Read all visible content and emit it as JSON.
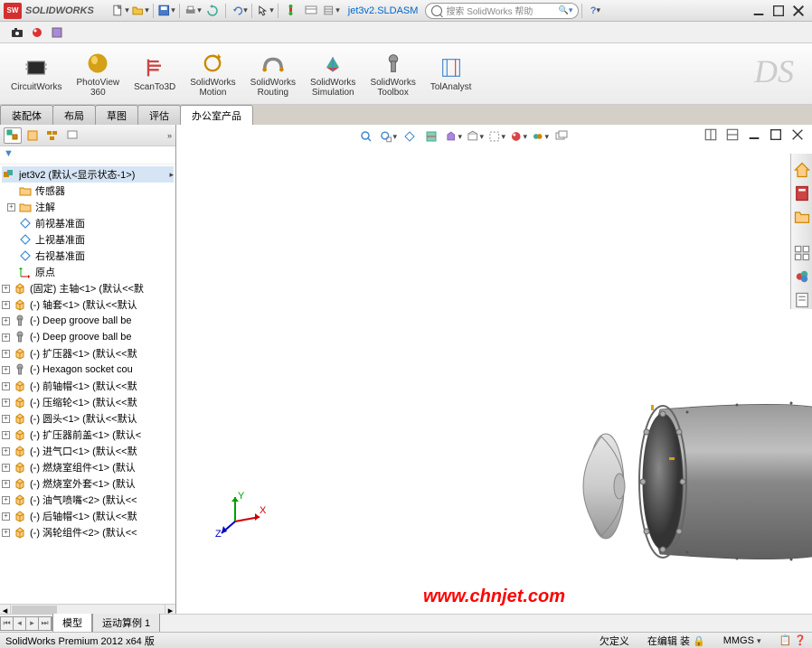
{
  "app": {
    "brand": "SOLIDWORKS",
    "logo_short": "SW",
    "filename": "jet3v2.SLDASM",
    "search_placeholder": "搜索 SolidWorks 帮助",
    "ds_logo": "DS"
  },
  "colors": {
    "accent_red": "#d32f2f",
    "link_blue": "#0066cc",
    "watermark_red": "#ff0000"
  },
  "command_mgr": [
    {
      "label": "CircuitWorks",
      "icon": "chip"
    },
    {
      "label": "PhotoView\n360",
      "icon": "sphere-gold"
    },
    {
      "label": "ScanTo3D",
      "icon": "flag"
    },
    {
      "label": "SolidWorks\nMotion",
      "icon": "motion"
    },
    {
      "label": "SolidWorks\nRouting",
      "icon": "routing"
    },
    {
      "label": "SolidWorks\nSimulation",
      "icon": "cube-color"
    },
    {
      "label": "SolidWorks\nToolbox",
      "icon": "bolt"
    },
    {
      "label": "TolAnalyst",
      "icon": "tol"
    }
  ],
  "main_tabs": [
    {
      "label": "装配体",
      "active": false
    },
    {
      "label": "布局",
      "active": false
    },
    {
      "label": "草图",
      "active": false
    },
    {
      "label": "评估",
      "active": false
    },
    {
      "label": "办公室产品",
      "active": true
    }
  ],
  "filter_label": "▼ ·",
  "tree": {
    "root": "jet3v2  (默认<显示状态-1>)",
    "top_items": [
      {
        "icon": "folder-sensor",
        "label": "传感器"
      },
      {
        "icon": "folder-anno",
        "label": "注解",
        "expand": "+"
      },
      {
        "icon": "plane",
        "label": "前视基准面"
      },
      {
        "icon": "plane",
        "label": "上视基准面"
      },
      {
        "icon": "plane",
        "label": "右视基准面"
      },
      {
        "icon": "origin",
        "label": "原点"
      }
    ],
    "parts": [
      "(固定) 主轴<1> (默认<<默",
      "(-) 轴套<1> (默认<<默认",
      "(-) Deep groove ball be",
      "(-) Deep groove ball be",
      "(-) 扩压器<1> (默认<<默",
      "(-) Hexagon socket cou",
      "(-) 前轴帽<1> (默认<<默",
      "(-) 压缩轮<1> (默认<<默",
      "(-) 圆头<1> (默认<<默认",
      "(-) 扩压器前盖<1> (默认<",
      "(-) 进气口<1> (默认<<默",
      "(-) 燃烧室组件<1> (默认",
      "(-) 燃烧室外套<1> (默认",
      "(-) 油气喷嘴<2> (默认<<",
      "(-) 后轴帽<1> (默认<<默",
      "(-) 涡轮组件<2> (默认<<"
    ]
  },
  "bottom_tabs": [
    "模型",
    "运动算例 1"
  ],
  "statusbar": {
    "left": "SolidWorks Premium 2012 x64 版",
    "mid": "欠定义",
    "right_units": "MMGS"
  },
  "watermark": "www.chnjet.com",
  "triad": {
    "x": "X",
    "y": "Y",
    "z": "Z"
  }
}
